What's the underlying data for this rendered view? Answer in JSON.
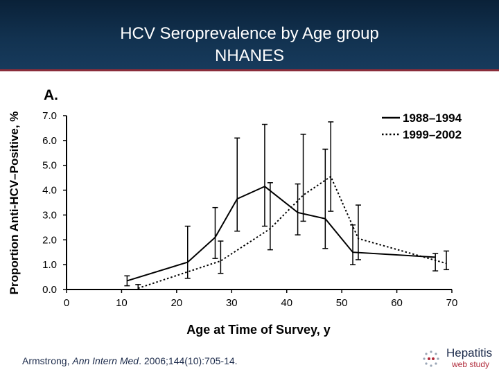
{
  "slide": {
    "title_line1": "HCV Seroprevalence by Age group",
    "title_line2": "NHANES",
    "citation_author": "Armstrong, ",
    "citation_journal": "Ann Intern Med",
    "citation_rest": ". 2006;144(10):705-14.",
    "logo": {
      "name": "Hepatitis",
      "sub": "web study"
    },
    "colors": {
      "header": "#123250",
      "header_rule": "#8a2d3a",
      "logo_accent": "#b02a3a"
    }
  },
  "chart_data": {
    "type": "line",
    "panel_label": "A.",
    "xlabel": "Age at Time of Survey, y",
    "ylabel": "Proportion Anti-HCV–Positive, %",
    "xlim": [
      0,
      70
    ],
    "ylim": [
      0,
      7
    ],
    "x_ticks": [
      "0",
      "10",
      "20",
      "30",
      "40",
      "50",
      "60",
      "70"
    ],
    "y_ticks": [
      "0.0",
      "1.0",
      "2.0",
      "3.0",
      "4.0",
      "5.0",
      "6.0",
      "7.0"
    ],
    "grid": false,
    "legend_position": "top-right",
    "series": [
      {
        "name": "1988–1994",
        "style": "solid",
        "x": [
          11,
          22,
          27,
          31,
          36,
          42,
          47,
          52,
          67
        ],
        "y": [
          0.35,
          1.1,
          2.1,
          3.65,
          4.15,
          3.1,
          2.85,
          1.5,
          1.3
        ],
        "err_low": [
          0.15,
          0.45,
          1.25,
          2.35,
          2.55,
          2.2,
          1.65,
          1.0,
          0.75
        ],
        "err_high": [
          0.55,
          2.55,
          3.3,
          6.1,
          6.65,
          4.25,
          5.65,
          2.6,
          1.45
        ]
      },
      {
        "name": "1999–2002",
        "style": "dotted",
        "x": [
          13,
          28,
          37,
          43,
          48,
          53,
          69
        ],
        "y": [
          0.05,
          1.15,
          2.45,
          3.8,
          4.55,
          2.05,
          1.05
        ],
        "err_low": [
          0.0,
          0.65,
          1.6,
          2.75,
          3.15,
          1.2,
          0.8
        ],
        "err_high": [
          0.2,
          1.95,
          4.3,
          6.25,
          6.75,
          3.4,
          1.55
        ]
      }
    ]
  }
}
